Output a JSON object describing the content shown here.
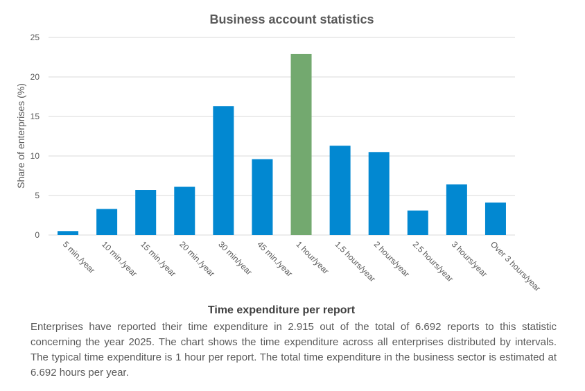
{
  "chart_data": {
    "type": "bar",
    "title": "Business account statistics",
    "xlabel": "Time expenditure per report",
    "ylabel": "Share of enterprises  (%)",
    "ylim": [
      0,
      25
    ],
    "yticks": [
      0,
      5,
      10,
      15,
      20,
      25
    ],
    "grid": true,
    "legend": "none",
    "categories": [
      "5 min./year",
      "10 min./year",
      "15 min./year",
      "20 min./year",
      "30 min/year",
      "45 min./year",
      "1 hour/year",
      "1.5 hours/year",
      "2 hours/year",
      "2.5 hours/year",
      "3 hours/year",
      "Over 3 hours/year"
    ],
    "values": [
      0.5,
      3.3,
      5.7,
      6.1,
      16.3,
      9.6,
      22.9,
      11.3,
      10.5,
      3.1,
      6.4,
      4.1
    ],
    "highlight_index": 6,
    "colors": {
      "bar": "#0288d1",
      "highlight": "#73a96f",
      "grid": "#d9d9d9",
      "text": "#595959"
    }
  },
  "caption": "Enterprises have reported their time expenditure in 2.915 out of the total of 6.692 reports to this statistic concerning the year 2025. The chart shows the time expenditure across all enterprises distributed by intervals. The typical time expenditure is 1 hour per report. The total time expenditure in the business sector is estimated at 6.692 hours per year."
}
